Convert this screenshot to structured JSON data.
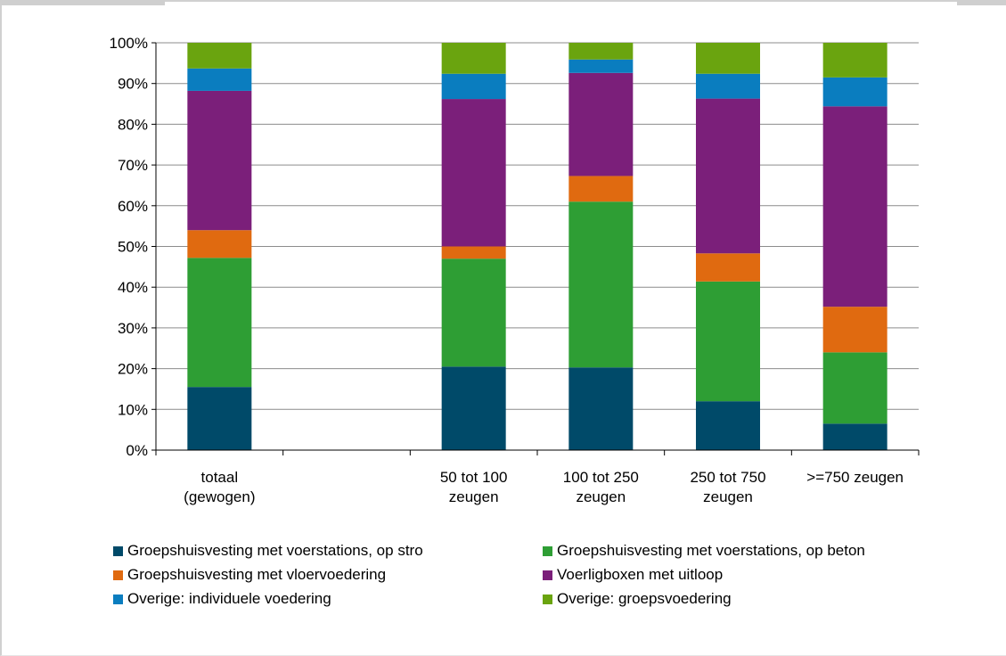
{
  "chart_data": {
    "type": "bar",
    "stacked": true,
    "percent_stacked": true,
    "categories": [
      [
        "totaal",
        "(gewogen)"
      ],
      [
        "",
        ""
      ],
      [
        "50 tot 100",
        "zeugen"
      ],
      [
        "100 tot 250",
        "zeugen"
      ],
      [
        "250 tot 750",
        "zeugen"
      ],
      [
        ">=750 zeugen",
        ""
      ]
    ],
    "yticks": [
      "0%",
      "10%",
      "20%",
      "30%",
      "40%",
      "50%",
      "60%",
      "70%",
      "80%",
      "90%",
      "100%"
    ],
    "ylim": [
      0,
      100
    ],
    "grid": true,
    "legend_position": "bottom",
    "series": [
      {
        "name": "Groepshuisvesting met voerstations, op stro",
        "color": "#004a69",
        "values": [
          15.5,
          null,
          20.5,
          20.3,
          12.0,
          6.5
        ]
      },
      {
        "name": "Groepshuisvesting met voerstations, op beton",
        "color": "#2e9e34",
        "values": [
          31.7,
          null,
          26.5,
          40.7,
          29.4,
          17.5
        ]
      },
      {
        "name": "Groepshuisvesting met vloervoedering",
        "color": "#e06a10",
        "values": [
          6.8,
          null,
          3.0,
          6.3,
          6.9,
          11.2
        ]
      },
      {
        "name": "Voerligboxen met uitloop",
        "color": "#7b1f7a",
        "values": [
          34.2,
          null,
          36.2,
          25.3,
          38.0,
          49.2
        ]
      },
      {
        "name": "Overige: individuele voedering",
        "color": "#0a7dbf",
        "values": [
          5.5,
          null,
          6.2,
          3.3,
          6.1,
          7.1
        ]
      },
      {
        "name": "Overige: groepsvoedering",
        "color": "#6aa40f",
        "values": [
          6.3,
          null,
          7.6,
          4.1,
          7.6,
          8.5
        ]
      }
    ]
  }
}
